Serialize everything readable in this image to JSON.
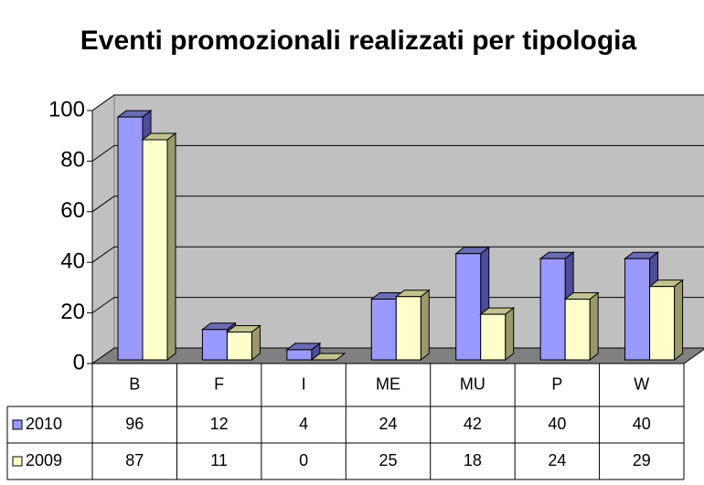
{
  "chart_data": {
    "type": "bar3d",
    "title": "Eventi promozionali realizzati per tipologia",
    "categories": [
      "B",
      "F",
      "I",
      "ME",
      "MU",
      "P",
      "W"
    ],
    "series": [
      {
        "name": "2010",
        "color": "#9999ff",
        "values": [
          96,
          12,
          4,
          24,
          42,
          40,
          40
        ]
      },
      {
        "name": "2009",
        "color": "#ffffcc",
        "values": [
          87,
          11,
          0,
          25,
          18,
          24,
          29
        ]
      }
    ],
    "ylim": [
      0,
      100
    ],
    "yticks": [
      0,
      20,
      40,
      60,
      80,
      100
    ],
    "grid": true,
    "legend": "table"
  }
}
